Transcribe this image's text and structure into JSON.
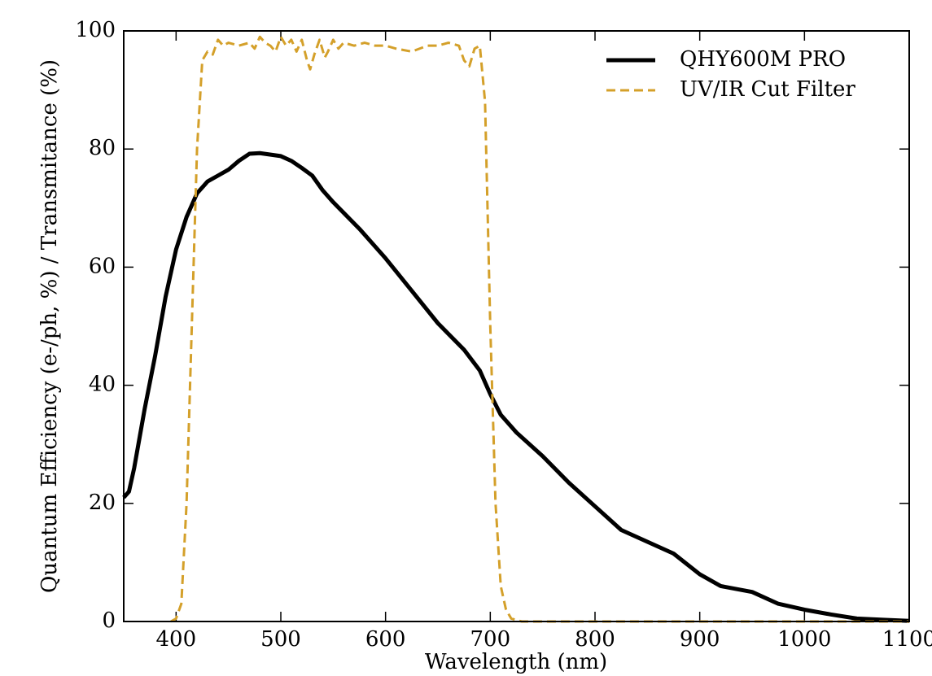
{
  "chart_data": {
    "type": "line",
    "xlabel": "Wavelength (nm)",
    "ylabel": "Quantum Efficiency (e-/ph, %) / Transmitance (%)",
    "xlim": [
      350,
      1100
    ],
    "ylim": [
      0,
      100
    ],
    "xticks": [
      400,
      500,
      600,
      700,
      800,
      900,
      1000,
      1100
    ],
    "yticks": [
      0,
      20,
      40,
      60,
      80,
      100
    ],
    "legend": "upper right",
    "series": [
      {
        "name": "QHY600M PRO",
        "color": "#000000",
        "style": "solid",
        "x": [
          350,
          355,
          360,
          370,
          380,
          390,
          400,
          410,
          420,
          430,
          440,
          450,
          460,
          470,
          480,
          500,
          510,
          520,
          530,
          540,
          550,
          575,
          600,
          625,
          650,
          675,
          690,
          700,
          710,
          725,
          750,
          775,
          800,
          825,
          850,
          875,
          900,
          920,
          950,
          975,
          1000,
          1025,
          1050,
          1075,
          1100
        ],
        "values": [
          21,
          22,
          26,
          36,
          45,
          55,
          63,
          68.5,
          72.5,
          74.5,
          75.5,
          76.5,
          78,
          79.2,
          79.3,
          78.8,
          78,
          76.8,
          75.5,
          73,
          71,
          66.5,
          61.5,
          56,
          50.5,
          46,
          42.5,
          38.5,
          35,
          32,
          28,
          23.5,
          19.5,
          15.5,
          13.5,
          11.5,
          8,
          6,
          5,
          3,
          2,
          1.2,
          0.5,
          0.3,
          0.1
        ]
      },
      {
        "name": "UV/IR Cut Filter",
        "color": "#d4a02a",
        "style": "dashed",
        "x": [
          395,
          400,
          405,
          410,
          415,
          420,
          425,
          430,
          435,
          440,
          445,
          450,
          460,
          470,
          475,
          480,
          485,
          490,
          495,
          500,
          505,
          510,
          515,
          520,
          525,
          528,
          532,
          537,
          542,
          545,
          550,
          555,
          560,
          570,
          580,
          590,
          600,
          610,
          625,
          640,
          650,
          660,
          670,
          675,
          680,
          685,
          690,
          695,
          700,
          705,
          710,
          715,
          720,
          730,
          1100
        ],
        "values": [
          0,
          0.5,
          3,
          20,
          50,
          80,
          95,
          96.5,
          96,
          98.5,
          97.5,
          98,
          97.5,
          98,
          97,
          99,
          98,
          97.5,
          96.5,
          99,
          97.5,
          98.5,
          96.5,
          98.5,
          95,
          93.5,
          96,
          98.5,
          95.5,
          96.5,
          98.5,
          97,
          98,
          97.5,
          98,
          97.5,
          97.5,
          97,
          96.5,
          97.5,
          97.5,
          98,
          97.5,
          95,
          94,
          97,
          97.5,
          88,
          50,
          20,
          6,
          2,
          0.5,
          0,
          0
        ]
      }
    ]
  }
}
